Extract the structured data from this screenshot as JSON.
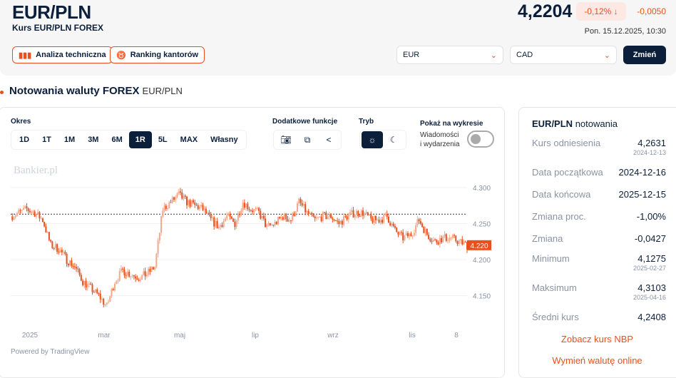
{
  "header": {
    "title": "EUR/PLN",
    "subtitle": "Kurs EUR/PLN FOREX",
    "price": "4,2204",
    "change_pct": "-0,12% ↓",
    "change_abs": "-0,0050",
    "datetime": "Pon. 15.12.2025, 10:30",
    "buttons": [
      {
        "label": "Analiza techniczna",
        "icon": "bar-chart-icon"
      },
      {
        "label": "Ranking kantorów",
        "icon": "medal-icon"
      }
    ],
    "from_currency": "EUR",
    "to_currency": "CAD",
    "submit": "Zmień",
    "accent": "#e8501f",
    "dark": "#0b1f3a"
  },
  "section": {
    "title": "Notowania waluty FOREX",
    "pair": "EUR/PLN"
  },
  "controls": {
    "period_label": "Okres",
    "periods": [
      "1D",
      "1T",
      "1M",
      "3M",
      "6M",
      "1R",
      "5L",
      "MAX",
      "Własny"
    ],
    "active_period": "1R",
    "extra_label": "Dodatkowe funkcje",
    "extra_icons": [
      "camera-icon",
      "copy-icon",
      "share-icon"
    ],
    "mode_label": "Tryb",
    "modes": [
      "sun-icon",
      "moon-icon"
    ],
    "active_mode": "sun-icon",
    "show_label": "Pokaż na wykresie",
    "news_line1": "Wiadomości",
    "news_line2": "i wydarzenia",
    "news_enabled": false
  },
  "chart_data": {
    "type": "candlestick",
    "watermark": "Bankier.pl",
    "powered": "Powered by TradingView",
    "x_ticks": [
      "2025",
      "mar",
      "maj",
      "lip",
      "wrz",
      "lis",
      "8"
    ],
    "y_ticks": [
      "4.300",
      "4.250",
      "4.200",
      "4.150"
    ],
    "ylim": [
      4.11,
      4.315
    ],
    "reference_line": 4.2631,
    "last_label": "4.220",
    "start": "2024-12-16",
    "end": "2025-12-15",
    "weekly_close": [
      4.26,
      4.265,
      4.27,
      4.265,
      4.255,
      4.22,
      4.215,
      4.2,
      4.19,
      4.17,
      4.16,
      4.15,
      4.135,
      4.17,
      4.185,
      4.18,
      4.175,
      4.18,
      4.19,
      4.27,
      4.28,
      4.29,
      4.28,
      4.275,
      4.27,
      4.255,
      4.245,
      4.26,
      4.25,
      4.28,
      4.27,
      4.265,
      4.245,
      4.25,
      4.26,
      4.255,
      4.28,
      4.265,
      4.255,
      4.26,
      4.26,
      4.25,
      4.26,
      4.265,
      4.265,
      4.255,
      4.255,
      4.26,
      4.24,
      4.23,
      4.235,
      4.255,
      4.235,
      4.225,
      4.23,
      4.23,
      4.225,
      4.22
    ]
  },
  "stats": {
    "title_pair": "EUR/PLN",
    "title_rest": "notowania",
    "rows": [
      {
        "k": "Kurs odniesienia",
        "v": "4,2631",
        "d": "2024-12-13"
      },
      {
        "k": "Data początkowa",
        "v": "2024-12-16"
      },
      {
        "k": "Data końcowa",
        "v": "2025-12-15"
      },
      {
        "k": "Zmiana proc.",
        "v": "-1,00%"
      },
      {
        "k": "Zmiana",
        "v": "-0,0427"
      },
      {
        "k": "Minimum",
        "v": "4,1275",
        "d": "2025-02-27"
      },
      {
        "k": "Maksimum",
        "v": "4,3103",
        "d": "2025-04-16"
      },
      {
        "k": "Średni kurs",
        "v": "4,2408"
      }
    ],
    "link_nbp": "Zobacz kurs NBP",
    "link_exchange": "Wymień walutę online"
  }
}
